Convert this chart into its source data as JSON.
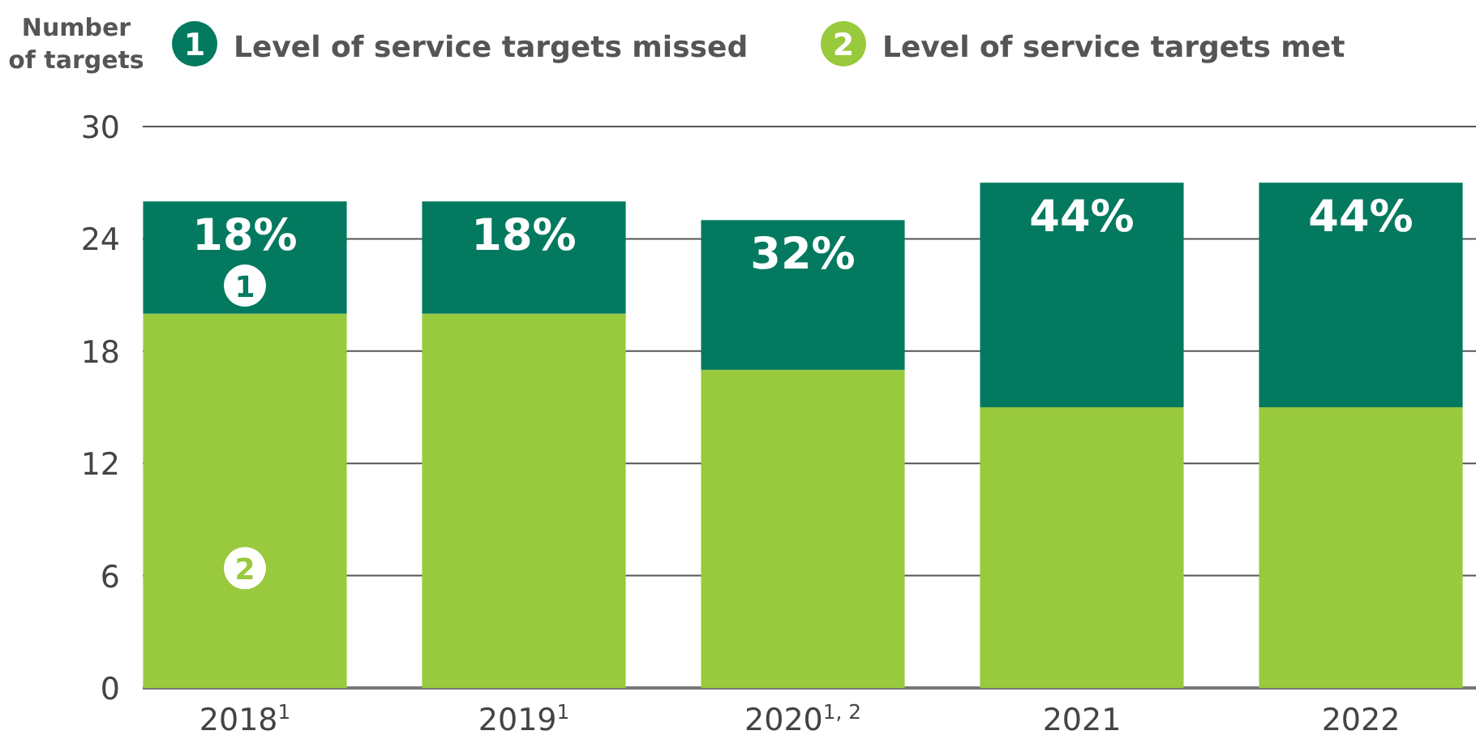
{
  "chart_data": {
    "type": "bar",
    "ylabel": "Number of targets",
    "categories": [
      "2018$^{1}$",
      "2019$^{1}$",
      "2020$^{1, 2}$",
      "2021",
      "2022"
    ],
    "stacked": true,
    "series": [
      {
        "name": "Level of service targets met",
        "color": "#99c93c",
        "values": [
          20,
          20,
          17,
          15,
          15
        ]
      },
      {
        "name": "Level of service targets missed",
        "color": "#037a5f",
        "values": [
          6,
          6,
          8,
          12,
          12
        ]
      }
    ],
    "ylim": [
      0,
      30
    ],
    "yticks": [
      0,
      6,
      12,
      18,
      24,
      30
    ],
    "grid": "y",
    "legend": "top",
    "annotations": [
      "18%",
      "18%",
      "32%",
      "44%",
      "44%",
      {
        "text": "1",
        "x": "2018$^{1}$",
        "y": 21.5
      },
      {
        "text": "2",
        "x": "2018$^{1}$",
        "y": 6.4
      }
    ]
  }
}
